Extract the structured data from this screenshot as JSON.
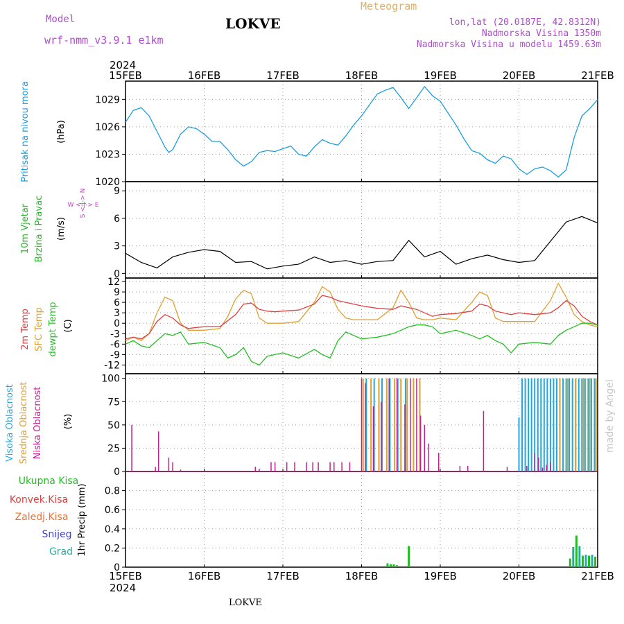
{
  "header": {
    "model_label": "Model",
    "model_name": "wrf-nmm_v3.9.1 e1km",
    "title": "LOKVE",
    "meteogram": "Meteogram",
    "lonlat": "lon,lat (20.0187E, 42.8312N)",
    "elevation": "Nadmorska Visina 1350m",
    "model_elevation": "Nadmorska Visina u modelu 1459.63m",
    "footer": "LOKVE",
    "credit": "made by Angel",
    "year": "2024"
  },
  "colors": {
    "pressure": "#1a9ee0",
    "wind_label": "#22bb22",
    "wind_dir_label": "#c040c0",
    "temp_2m": "#e04040",
    "temp_sfc": "#e0a030",
    "dewpoint": "#22c022",
    "cloud_high": "#20a8e0",
    "cloud_mid": "#e0a030",
    "cloud_low": "#c02090",
    "precip_total": "#22bb22",
    "precip_conv": "#e04040",
    "precip_frozen": "#f07030",
    "precip_snow": "#4040e0",
    "precip_grad": "#20b0a0"
  },
  "x_axis": {
    "ticks": [
      "15FEB",
      "16FEB",
      "17FEB",
      "18FEB",
      "19FEB",
      "20FEB",
      "21FEB"
    ],
    "range_days": [
      0,
      6
    ]
  },
  "chart_data": [
    {
      "type": "line",
      "id": "pressure",
      "ylabel_main": "Pritisak na nivou mora",
      "unit": "(hPa)",
      "ylim": [
        1020,
        1031
      ],
      "yticks": [
        1020,
        1023,
        1026,
        1029
      ],
      "grid": true,
      "series": [
        {
          "x": [
            0,
            0.1,
            0.2,
            0.3,
            0.4,
            0.5,
            0.55,
            0.6,
            0.7,
            0.8,
            0.9,
            1.0,
            1.1,
            1.2,
            1.3,
            1.4,
            1.5,
            1.6,
            1.7,
            1.8,
            1.9,
            2.0,
            2.1,
            2.2,
            2.3,
            2.4,
            2.5,
            2.6,
            2.7,
            2.8,
            2.9,
            3.0,
            3.1,
            3.2,
            3.3,
            3.4,
            3.5,
            3.6,
            3.7,
            3.8,
            3.9,
            4.0,
            4.1,
            4.2,
            4.3,
            4.4,
            4.5,
            4.6,
            4.7,
            4.8,
            4.9,
            5.0,
            5.1,
            5.2,
            5.3,
            5.4,
            5.5,
            5.6,
            5.7,
            5.8,
            5.9,
            6.0
          ],
          "y": [
            1026.5,
            1027.8,
            1028.1,
            1027.2,
            1025.5,
            1023.8,
            1023.2,
            1023.5,
            1025.2,
            1026.0,
            1025.8,
            1025.2,
            1024.4,
            1024.4,
            1023.5,
            1022.4,
            1021.7,
            1022.2,
            1023.2,
            1023.4,
            1023.3,
            1023.6,
            1023.9,
            1023.0,
            1022.8,
            1023.8,
            1024.6,
            1024.2,
            1024.0,
            1025.0,
            1026.2,
            1027.2,
            1028.4,
            1029.6,
            1030.0,
            1030.3,
            1029.2,
            1028.0,
            1029.2,
            1030.4,
            1029.4,
            1028.8,
            1027.5,
            1026.2,
            1024.7,
            1023.4,
            1023.1,
            1022.4,
            1022.0,
            1022.8,
            1022.5,
            1021.4,
            1020.8,
            1021.4,
            1021.6,
            1021.2,
            1020.5,
            1021.3,
            1024.8,
            1027.2,
            1028.0,
            1029.0
          ]
        }
      ]
    },
    {
      "type": "line",
      "id": "wind",
      "ylabel_main": "10m Vjetar",
      "ylabel_sub": "Brzina i Pravac",
      "unit": "(m/s)",
      "dir_legend": "W <-|-> E",
      "dir_legend_vertical": "S <-|-> N",
      "ylim": [
        -0.5,
        10
      ],
      "yticks": [
        0,
        3,
        6,
        9
      ],
      "grid": true,
      "series": [
        {
          "name": "speed",
          "x": [
            0,
            0.2,
            0.4,
            0.6,
            0.8,
            1.0,
            1.2,
            1.4,
            1.6,
            1.8,
            2.0,
            2.2,
            2.4,
            2.6,
            2.8,
            3.0,
            3.2,
            3.4,
            3.6,
            3.8,
            4.0,
            4.2,
            4.4,
            4.6,
            4.8,
            5.0,
            5.2,
            5.4,
            5.6,
            5.8,
            6.0
          ],
          "y": [
            2.2,
            1.2,
            0.6,
            1.8,
            2.3,
            2.6,
            2.4,
            1.2,
            1.3,
            0.5,
            0.8,
            1.0,
            1.8,
            1.2,
            1.4,
            1.0,
            1.3,
            1.4,
            3.6,
            1.8,
            2.4,
            1.0,
            1.6,
            2.0,
            1.5,
            1.2,
            1.4,
            3.5,
            5.6,
            6.2,
            5.5
          ]
        }
      ]
    },
    {
      "type": "line",
      "id": "temperature",
      "ylabel_main": "2m Temp",
      "ylabel_sfc": "SFC Temp",
      "ylabel_dew": "dewpt Temp",
      "unit": "(C)",
      "ylim": [
        -14.5,
        13
      ],
      "yticks": [
        -12,
        -9,
        -6,
        -3,
        0,
        3,
        6,
        9,
        12
      ],
      "grid": true,
      "series": [
        {
          "name": "2m",
          "x": [
            0,
            0.1,
            0.2,
            0.3,
            0.4,
            0.5,
            0.6,
            0.7,
            0.8,
            0.9,
            1.0,
            1.2,
            1.4,
            1.5,
            1.6,
            1.7,
            1.8,
            1.9,
            2.0,
            2.2,
            2.4,
            2.5,
            2.6,
            2.7,
            2.8,
            2.9,
            3.0,
            3.2,
            3.4,
            3.5,
            3.6,
            3.7,
            3.8,
            3.9,
            4.0,
            4.2,
            4.4,
            4.5,
            4.6,
            4.7,
            4.8,
            4.9,
            5.0,
            5.2,
            5.4,
            5.5,
            5.6,
            5.7,
            5.8,
            5.9,
            6.0
          ],
          "y": [
            -4.5,
            -4.0,
            -4.5,
            -3.0,
            0.5,
            2.5,
            1.5,
            -0.5,
            -1.5,
            -1.2,
            -1.0,
            -1.0,
            2.5,
            5.5,
            5.8,
            4.0,
            3.5,
            3.3,
            3.5,
            3.8,
            5.5,
            8.0,
            7.5,
            6.5,
            6.0,
            5.5,
            5.0,
            4.3,
            4.0,
            5.0,
            4.5,
            4.0,
            3.0,
            2.0,
            2.5,
            2.8,
            3.5,
            5.5,
            5.0,
            3.5,
            3.0,
            2.5,
            3.0,
            2.5,
            3.0,
            4.5,
            6.5,
            5.0,
            2.0,
            0.5,
            -0.5
          ]
        },
        {
          "name": "sfc",
          "x": [
            0,
            0.1,
            0.2,
            0.3,
            0.4,
            0.5,
            0.6,
            0.7,
            0.8,
            1.0,
            1.2,
            1.3,
            1.4,
            1.5,
            1.6,
            1.7,
            1.8,
            1.9,
            2.0,
            2.2,
            2.4,
            2.5,
            2.6,
            2.7,
            2.8,
            2.9,
            3.0,
            3.2,
            3.4,
            3.5,
            3.6,
            3.7,
            3.8,
            3.9,
            4.0,
            4.2,
            4.4,
            4.5,
            4.6,
            4.7,
            4.8,
            4.9,
            5.0,
            5.2,
            5.4,
            5.5,
            5.6,
            5.7,
            5.8,
            5.9,
            6.0
          ],
          "y": [
            -5.0,
            -4.0,
            -5.0,
            -3.0,
            3.0,
            7.5,
            6.5,
            0.0,
            -2.0,
            -2.0,
            -1.5,
            2.0,
            7.0,
            9.5,
            8.5,
            1.5,
            0.0,
            0.0,
            0.0,
            0.5,
            6.0,
            10.5,
            9.0,
            4.0,
            1.5,
            1.0,
            1.0,
            1.0,
            4.5,
            9.5,
            6.0,
            1.5,
            1.0,
            1.0,
            1.5,
            1.0,
            6.0,
            9.0,
            8.0,
            1.5,
            0.5,
            0.5,
            0.5,
            0.5,
            6.5,
            11.5,
            7.5,
            2.5,
            0.5,
            -0.5,
            -1.0
          ]
        },
        {
          "name": "dew",
          "x": [
            0,
            0.1,
            0.2,
            0.3,
            0.4,
            0.5,
            0.6,
            0.7,
            0.8,
            1.0,
            1.2,
            1.3,
            1.4,
            1.5,
            1.6,
            1.7,
            1.8,
            1.9,
            2.0,
            2.2,
            2.4,
            2.5,
            2.6,
            2.7,
            2.8,
            2.9,
            3.0,
            3.2,
            3.4,
            3.5,
            3.6,
            3.7,
            3.8,
            3.9,
            4.0,
            4.2,
            4.4,
            4.5,
            4.6,
            4.7,
            4.8,
            4.9,
            5.0,
            5.2,
            5.4,
            5.5,
            5.6,
            5.7,
            5.8,
            5.9,
            6.0
          ],
          "y": [
            -6.0,
            -5.0,
            -6.5,
            -7.0,
            -5.0,
            -3.0,
            -3.5,
            -2.5,
            -6.0,
            -5.5,
            -7.0,
            -10.0,
            -9.0,
            -7.0,
            -11.0,
            -12.0,
            -9.5,
            -9.0,
            -8.5,
            -10.0,
            -7.5,
            -9.0,
            -10.0,
            -5.0,
            -2.5,
            -3.5,
            -4.5,
            -4.0,
            -3.0,
            -2.0,
            -1.0,
            -0.5,
            -0.5,
            -1.0,
            -3.0,
            -2.0,
            -3.5,
            -4.5,
            -3.5,
            -5.0,
            -6.0,
            -8.5,
            -6.0,
            -5.5,
            -6.0,
            -3.5,
            -2.0,
            -1.0,
            0.0,
            0.0,
            -0.5
          ]
        }
      ]
    },
    {
      "type": "bar",
      "id": "cloud",
      "ylabel_high": "Visoka Oblacnost",
      "ylabel_mid": "Srednja Oblacnost",
      "ylabel_low": "Niska Oblacnost",
      "unit": "(%)",
      "ylim": [
        0,
        105
      ],
      "yticks": [
        0,
        25,
        50,
        75,
        100
      ],
      "grid": true,
      "low": {
        "x": [
          0.08,
          0.38,
          0.42,
          0.55,
          0.6,
          0.7,
          1.65,
          1.7,
          1.85,
          1.9,
          2.05,
          2.15,
          2.3,
          2.38,
          2.45,
          2.6,
          2.65,
          2.75,
          2.85,
          3.0,
          3.05,
          3.15,
          3.25,
          3.35,
          3.45,
          3.55,
          3.62,
          3.7,
          3.75,
          3.8,
          3.85,
          3.98,
          4.25,
          4.35,
          4.55,
          4.85,
          5.1,
          5.2,
          5.25,
          5.3,
          5.35,
          5.4
        ],
        "y": [
          50,
          5,
          43,
          15,
          10,
          2,
          5,
          3,
          10,
          10,
          10,
          10,
          10,
          10,
          10,
          10,
          10,
          10,
          10,
          100,
          95,
          70,
          75,
          100,
          100,
          72,
          100,
          100,
          60,
          50,
          30,
          20,
          6,
          6,
          65,
          5,
          6,
          20,
          15,
          4,
          7,
          10
        ]
      },
      "mid": {
        "x": [
          3.02,
          3.12,
          3.22,
          3.32,
          3.42,
          3.5,
          3.58,
          3.66,
          3.74,
          5.52,
          5.62,
          5.72,
          5.82,
          5.9,
          5.98
        ],
        "y": [
          100,
          100,
          100,
          100,
          100,
          100,
          100,
          100,
          100,
          100,
          100,
          100,
          100,
          100,
          100
        ]
      },
      "high": {
        "x": [
          3.06,
          3.16,
          3.26,
          3.36,
          3.46,
          3.56,
          5.0,
          5.04,
          5.08,
          5.12,
          5.16,
          5.2,
          5.24,
          5.28,
          5.32,
          5.36,
          5.4,
          5.44,
          5.48,
          5.52,
          5.56,
          5.6,
          5.64,
          5.68,
          5.72,
          5.76,
          5.8,
          5.84,
          5.88,
          5.92,
          5.96
        ],
        "y": [
          100,
          100,
          100,
          100,
          100,
          100,
          58,
          100,
          100,
          100,
          100,
          100,
          100,
          100,
          100,
          100,
          100,
          100,
          100,
          100,
          100,
          100,
          100,
          100,
          100,
          100,
          100,
          100,
          100,
          100,
          100
        ]
      }
    },
    {
      "type": "bar",
      "id": "precip",
      "ylabel_total": "Ukupna Kisa",
      "ylabel_conv": "Konvek.Kisa",
      "ylabel_frozen": "Zaledj.Kisa",
      "ylabel_snow": "Snijeg",
      "ylabel_grad": "Grad",
      "ylabel_axis": "1hr Precip (mm)",
      "ylim": [
        0,
        1.0
      ],
      "yticks": [
        0,
        0.2,
        0.4,
        0.6,
        0.8
      ],
      "grid": true,
      "total": {
        "x": [
          3.33,
          3.37,
          3.41,
          3.45,
          3.6,
          5.65,
          5.69,
          5.73,
          5.77,
          5.81,
          5.85,
          5.89,
          5.93,
          5.97
        ],
        "y": [
          0.04,
          0.03,
          0.03,
          0.02,
          0.22,
          0.09,
          0.21,
          0.33,
          0.22,
          0.12,
          0.13,
          0.12,
          0.13,
          0.11
        ]
      }
    }
  ]
}
